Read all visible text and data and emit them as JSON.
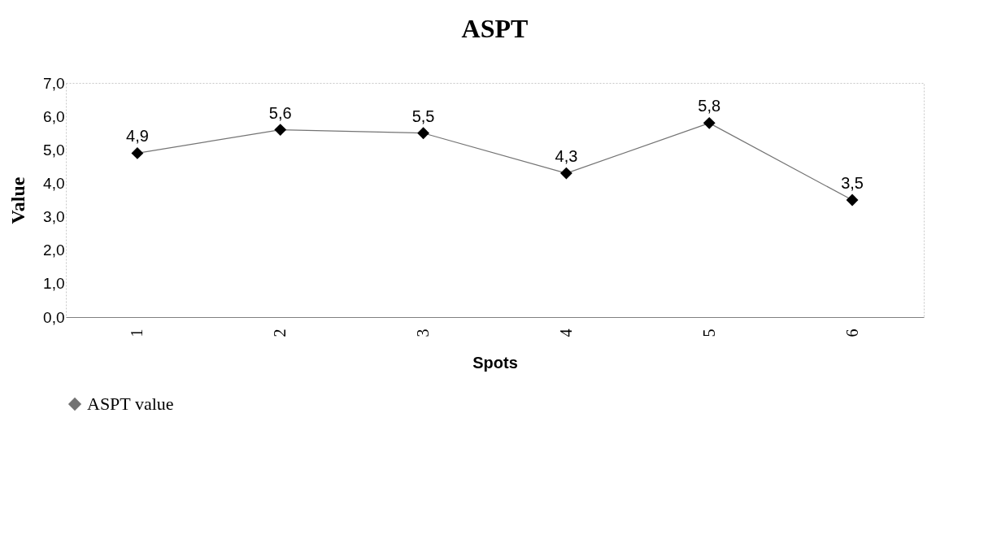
{
  "chart_data": {
    "type": "line",
    "title": "ASPT",
    "xlabel": "Spots",
    "ylabel": "Value",
    "categories": [
      "1",
      "2",
      "3",
      "4",
      "5",
      "6"
    ],
    "series": [
      {
        "name": "ASPT value",
        "color": "#000000",
        "values": [
          4.9,
          5.6,
          5.5,
          4.3,
          5.8,
          3.5
        ],
        "value_labels": [
          "4,9",
          "5,6",
          "5,5",
          "4,3",
          "5,8",
          "3,5"
        ]
      }
    ],
    "ylim": [
      0,
      7
    ],
    "yticks": [
      {
        "value": 0,
        "label": "0,0"
      },
      {
        "value": 1,
        "label": "1,0"
      },
      {
        "value": 2,
        "label": "2,0"
      },
      {
        "value": 3,
        "label": "3,0"
      },
      {
        "value": 4,
        "label": "4,0"
      },
      {
        "value": 5,
        "label": "5,0"
      },
      {
        "value": 6,
        "label": "6,0"
      },
      {
        "value": 7,
        "label": "7,0"
      }
    ],
    "marker": "diamond",
    "line_style": "solid",
    "legend": "bottom",
    "grid": false
  }
}
